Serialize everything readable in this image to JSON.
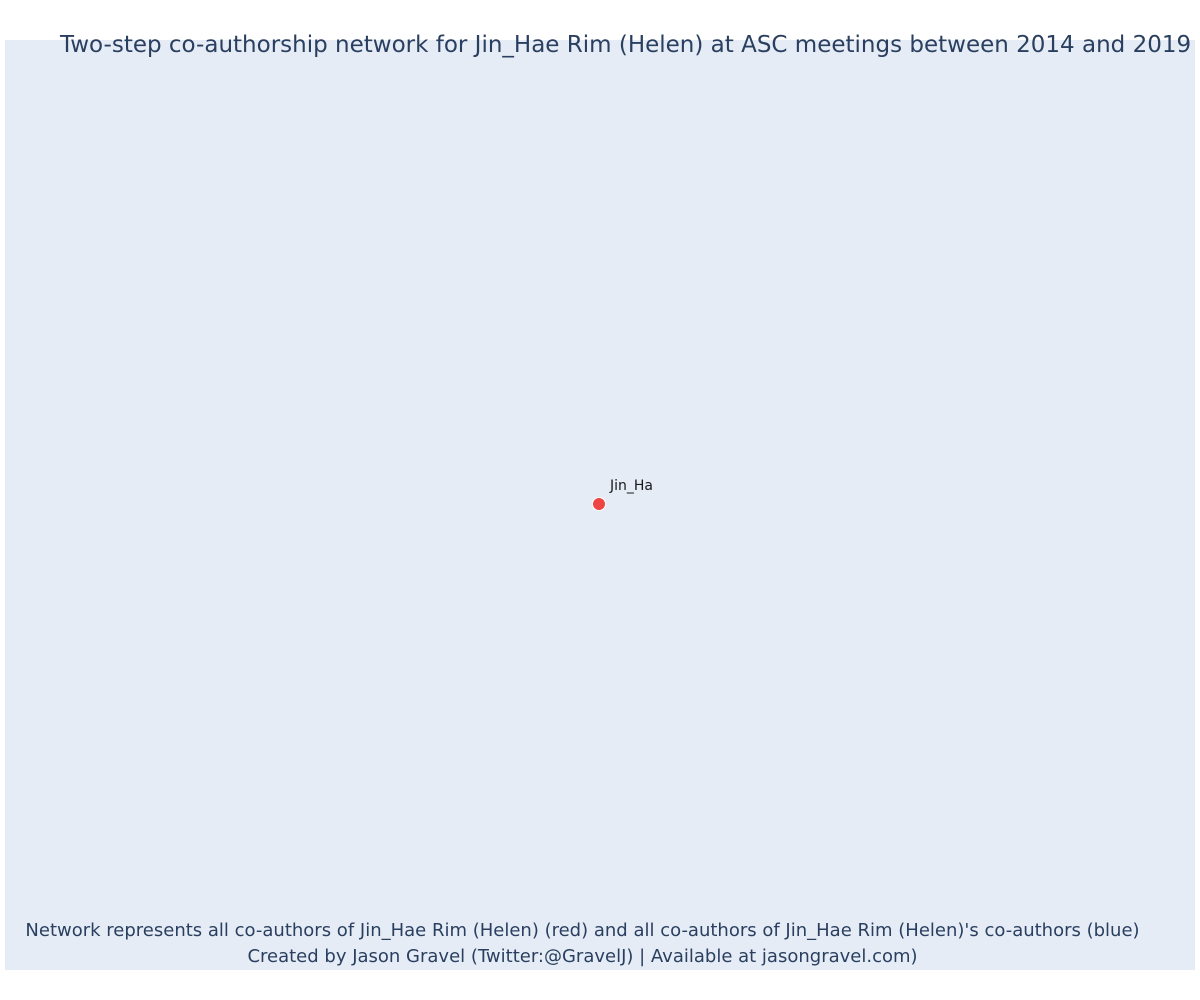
{
  "chart": {
    "title": "Two-step co-authorship network for Jin_Hae Rim (Helen) at ASC meetings between 2014 and 2019",
    "caption_line1": "Network represents all co-authors of Jin_Hae Rim (Helen) (red) and all co-authors of Jin_Hae Rim (Helen)'s co-authors (blue)",
    "caption_line2": "Created by Jason Gravel (Twitter:@GravelJ) | Available at jasongravel.com)"
  },
  "network": {
    "nodes": [
      {
        "label": "Jin_Ha",
        "role": "focal-author",
        "color": "#ef4444"
      }
    ],
    "edges": []
  },
  "colors": {
    "plot_background": "#e5ecf6",
    "text": "#2a3f5f",
    "focal_node": "#ef4444"
  }
}
